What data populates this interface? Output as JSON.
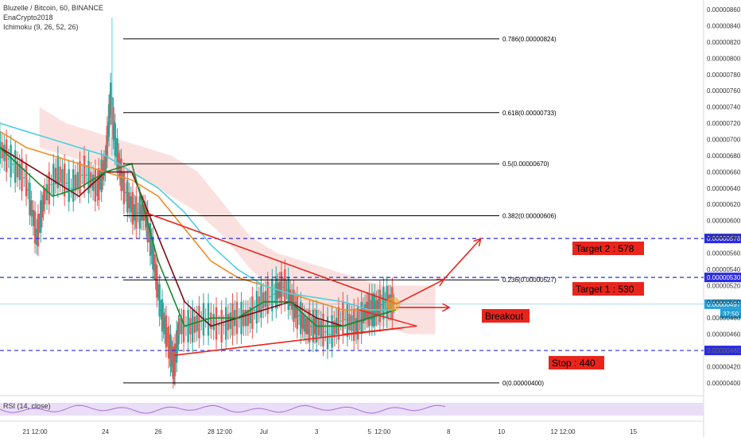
{
  "header": {
    "symbol": "Bluzelle / Bitcoin, 60, BINANCE",
    "author": "EnaCrypto2018",
    "indicator": "Ichimoku (9, 26, 52, 26)"
  },
  "rsi": {
    "label": "RSI (14, close)"
  },
  "colors": {
    "fib_line": "#000000",
    "dashed_level": "#2a2ae8",
    "annotation_red": "#e8251c",
    "label_bg": "#e8251c",
    "price_bg": "#2a2ae8",
    "current_price_bg": "#21a0d8",
    "ema_orange": "#f28c21",
    "ma_cyan": "#4dd0e1",
    "ma_darkred": "#7a0c12",
    "ma_green": "#1b8a2e",
    "cloud_red": "#f6c9c4",
    "cloud_green": "#c9ecc6"
  },
  "chart_data": {
    "type": "line",
    "title": "Bluzelle / Bitcoin, 60, BINANCE",
    "ylim": [
      3.95e-06,
      8.65e-06
    ],
    "price_axis_ticks": [
      "0.00000860",
      "0.00000840",
      "0.00000820",
      "0.00000800",
      "0.00000780",
      "0.00000760",
      "0.00000740",
      "0.00000720",
      "0.00000700",
      "0.00000680",
      "0.00000660",
      "0.00000640",
      "0.00000620",
      "0.00000600",
      "0.00000580",
      "0.00000560",
      "0.00000540",
      "0.00000520",
      "0.00000500",
      "0.00000480",
      "0.00000460",
      "0.00000440",
      "0.00000420",
      "0.00000400"
    ],
    "price_axis_values": [
      8.6e-06,
      8.4e-06,
      8.2e-06,
      8e-06,
      7.8e-06,
      7.6e-06,
      7.4e-06,
      7.2e-06,
      7e-06,
      6.8e-06,
      6.6e-06,
      6.4e-06,
      6.2e-06,
      6e-06,
      5.8e-06,
      5.6e-06,
      5.4e-06,
      5.2e-06,
      5e-06,
      4.8e-06,
      4.6e-06,
      4.4e-06,
      4.2e-06,
      4e-06
    ],
    "time_axis_ticks": [
      {
        "label": "21",
        "day": 21.0
      },
      {
        "label": "12:00",
        "day": 21.5
      },
      {
        "label": "24",
        "day": 24.0
      },
      {
        "label": "26",
        "day": 26.0
      },
      {
        "label": "28",
        "day": 28.0
      },
      {
        "label": "12:00",
        "day": 28.5
      },
      {
        "label": "Jul",
        "day": 30.0
      },
      {
        "label": "3",
        "day": 32.0
      },
      {
        "label": "5",
        "day": 34.0
      },
      {
        "label": "12:00",
        "day": 34.5
      },
      {
        "label": "8",
        "day": 37.0
      },
      {
        "label": "10",
        "day": 39.0
      },
      {
        "label": "12",
        "day": 41.0
      },
      {
        "label": "12:00",
        "day": 41.5
      },
      {
        "label": "15",
        "day": 44.0
      }
    ],
    "fib_levels": [
      {
        "label": "0.786(0.00000824)",
        "value": 8.24e-06
      },
      {
        "label": "0.618(0.00000733)",
        "value": 7.33e-06
      },
      {
        "label": "0.5(0.00000670)",
        "value": 6.7e-06
      },
      {
        "label": "0.382(0.00000606)",
        "value": 6.06e-06
      },
      {
        "label": "0.236(0.00000527)",
        "value": 5.27e-06
      },
      {
        "label": "0(0.00000400)",
        "value": 4e-06
      }
    ],
    "horizontal_levels": [
      {
        "price_label": "0.00000578",
        "value": 5.78e-06
      },
      {
        "price_label": "0.00000530",
        "value": 5.3e-06
      },
      {
        "price_label": "0.00000440",
        "value": 4.4e-06
      }
    ],
    "current_price": {
      "label": "0.00000497",
      "value": 4.97e-06,
      "countdown": "37:50"
    },
    "annotations": [
      {
        "text": "Target 2 : 578"
      },
      {
        "text": "Target 1 : 530"
      },
      {
        "text": "Breakout"
      },
      {
        "text": "Stop : 440"
      }
    ],
    "price_path": [
      [
        20.0,
        6.9e-06
      ],
      [
        20.5,
        6.7e-06
      ],
      [
        21.0,
        6.5e-06
      ],
      [
        21.4,
        5.8e-06
      ],
      [
        21.7,
        6.3e-06
      ],
      [
        22.2,
        6.6e-06
      ],
      [
        22.7,
        6.4e-06
      ],
      [
        23.2,
        6.6e-06
      ],
      [
        23.7,
        6.4e-06
      ],
      [
        24.0,
        6.7e-06
      ],
      [
        24.2,
        7.5e-06
      ],
      [
        24.4,
        6.9e-06
      ],
      [
        24.7,
        6.4e-06
      ],
      [
        25.1,
        6.1e-06
      ],
      [
        25.5,
        6.1e-06
      ],
      [
        25.8,
        5.6e-06
      ],
      [
        26.1,
        4.9e-06
      ],
      [
        26.4,
        4.5e-06
      ],
      [
        26.6,
        4.2e-06
      ],
      [
        26.8,
        4.7e-06
      ],
      [
        27.3,
        4.7e-06
      ],
      [
        27.8,
        4.8e-06
      ],
      [
        28.4,
        4.7e-06
      ],
      [
        28.9,
        4.8e-06
      ],
      [
        29.4,
        4.8e-06
      ],
      [
        29.9,
        5e-06
      ],
      [
        30.4,
        5.1e-06
      ],
      [
        30.8,
        5.2e-06
      ],
      [
        31.2,
        4.9e-06
      ],
      [
        31.6,
        4.7e-06
      ],
      [
        32.0,
        4.7e-06
      ],
      [
        32.5,
        4.6e-06
      ],
      [
        33.0,
        4.8e-06
      ],
      [
        33.5,
        4.7e-06
      ],
      [
        33.9,
        4.9e-06
      ],
      [
        34.2,
        4.9e-06
      ],
      [
        34.6,
        5e-06
      ],
      [
        35.0,
        4.97e-06
      ]
    ],
    "series": [
      {
        "points": [
          [
            20.0,
            7.1e-06
          ],
          [
            21.0,
            6.9e-06
          ],
          [
            22.0,
            6.8e-06
          ],
          [
            23.0,
            6.7e-06
          ],
          [
            24.0,
            6.6e-06
          ],
          [
            25.0,
            6.5e-06
          ],
          [
            26.0,
            6.3e-06
          ],
          [
            27.0,
            5.9e-06
          ],
          [
            28.0,
            5.5e-06
          ],
          [
            29.0,
            5.3e-06
          ],
          [
            30.0,
            5.2e-06
          ],
          [
            31.0,
            5.1e-06
          ],
          [
            32.0,
            5e-06
          ],
          [
            33.0,
            4.9e-06
          ],
          [
            34.0,
            4.9e-06
          ],
          [
            35.0,
            4.9e-06
          ]
        ]
      },
      {
        "points": [
          [
            20.0,
            7.2e-06
          ],
          [
            21.0,
            7.1e-06
          ],
          [
            22.0,
            7e-06
          ],
          [
            23.0,
            6.9e-06
          ],
          [
            24.0,
            6.8e-06
          ],
          [
            25.0,
            6.6e-06
          ],
          [
            26.0,
            6.4e-06
          ],
          [
            27.0,
            6.1e-06
          ],
          [
            28.0,
            5.7e-06
          ],
          [
            29.0,
            5.4e-06
          ],
          [
            30.0,
            5.2e-06
          ],
          [
            31.0,
            5.1e-06
          ],
          [
            32.0,
            5.05e-06
          ],
          [
            33.0,
            5e-06
          ],
          [
            34.0,
            4.9e-06
          ],
          [
            35.0,
            4.9e-06
          ]
        ]
      },
      {
        "points": [
          [
            20.0,
            6.9e-06
          ],
          [
            21.0,
            6.7e-06
          ],
          [
            22.0,
            6.5e-06
          ],
          [
            23.0,
            6.3e-06
          ],
          [
            24.0,
            6.6e-06
          ],
          [
            25.0,
            6.6e-06
          ],
          [
            26.0,
            5.8e-06
          ],
          [
            27.0,
            5e-06
          ],
          [
            28.0,
            4.7e-06
          ],
          [
            29.0,
            4.8e-06
          ],
          [
            30.0,
            4.9e-06
          ],
          [
            31.0,
            5e-06
          ],
          [
            32.0,
            4.8e-06
          ],
          [
            33.0,
            4.7e-06
          ],
          [
            34.0,
            4.8e-06
          ],
          [
            35.0,
            4.9e-06
          ]
        ]
      },
      {
        "points": [
          [
            20.0,
            6.9e-06
          ],
          [
            21.0,
            6.6e-06
          ],
          [
            22.0,
            6.3e-06
          ],
          [
            23.0,
            6.4e-06
          ],
          [
            24.0,
            6.6e-06
          ],
          [
            25.0,
            6.7e-06
          ],
          [
            26.0,
            5.5e-06
          ],
          [
            27.0,
            4.7e-06
          ],
          [
            28.0,
            4.8e-06
          ],
          [
            29.0,
            4.8e-06
          ],
          [
            30.0,
            5e-06
          ],
          [
            31.0,
            5e-06
          ],
          [
            32.0,
            4.7e-06
          ],
          [
            33.0,
            4.7e-06
          ],
          [
            34.0,
            4.8e-06
          ],
          [
            35.0,
            4.9e-06
          ]
        ]
      }
    ],
    "trendlines": [
      {
        "from": [
          25.5,
          6.1e-06
        ],
        "to": [
          35.0,
          4.98e-06
        ]
      },
      {
        "from": [
          26.6,
          4.34e-06
        ],
        "to": [
          35.3,
          4.68e-06
        ]
      }
    ],
    "arrows": [
      {
        "from": [
          35.0,
          4.97e-06
        ],
        "to": [
          36.8,
          5.27e-06
        ]
      },
      {
        "from": [
          36.8,
          5.27e-06
        ],
        "to": [
          38.2,
          5.77e-06
        ]
      },
      {
        "from": [
          35.0,
          4.93e-06
        ],
        "to": [
          37.0,
          4.93e-06
        ]
      }
    ],
    "breakout_marker": {
      "day": 34.9,
      "price": 4.97e-06
    },
    "grid": false,
    "legend": "top-left"
  }
}
